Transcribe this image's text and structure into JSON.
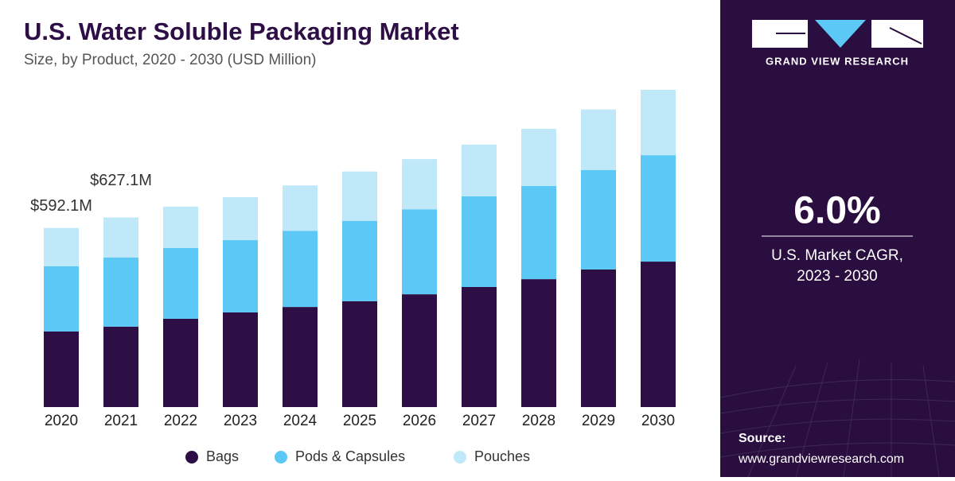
{
  "chart_data": {
    "type": "stacked_bar",
    "title": "U.S. Water Soluble Packaging Market",
    "subtitle": "Size, by Product, 2020 - 2030 (USD Million)",
    "categories": [
      "2020",
      "2021",
      "2022",
      "2023",
      "2024",
      "2025",
      "2026",
      "2027",
      "2028",
      "2029",
      "2030"
    ],
    "series": [
      {
        "name": "Bags",
        "color": "#2e0f45",
        "values": [
          250,
          266,
          292,
          313,
          331,
          350,
          373,
          397,
          423,
          455,
          481
        ]
      },
      {
        "name": "Pods & Capsules",
        "color": "#5bc8f5",
        "values": [
          216,
          229,
          234,
          239,
          252,
          266,
          281,
          300,
          308,
          329,
          352
        ]
      },
      {
        "name": "Pouches",
        "color": "#bfe8f8",
        "values": [
          126.1,
          132.1,
          137,
          142,
          150,
          163,
          166,
          171,
          189,
          200,
          216
        ]
      }
    ],
    "annotations": [
      {
        "category": "2020",
        "value": 592.1,
        "label": "$592.1M"
      },
      {
        "category": "2021",
        "value": 627.1,
        "label": "$627.1M"
      }
    ],
    "legend": "bottom"
  },
  "sidebar": {
    "brand": "GRAND VIEW RESEARCH",
    "cagr": "6.0%",
    "cagr_label": [
      "U.S. Market CAGR,",
      "2023 - 2030"
    ],
    "source_title": "Source:",
    "source_url": "www.grandviewresearch.com"
  }
}
